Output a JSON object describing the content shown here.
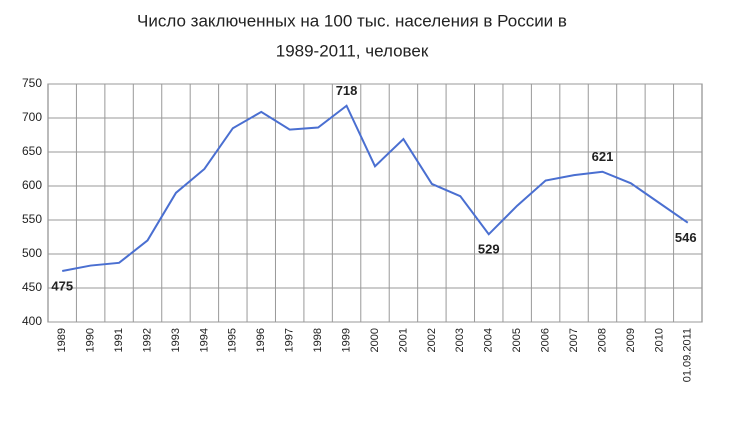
{
  "chart_data": {
    "type": "line",
    "title": [
      "Число заключенных на 100 тыс. населения в России в",
      "1989-2011, человек"
    ],
    "categories": [
      "1989",
      "1990",
      "1991",
      "1992",
      "1993",
      "1994",
      "1995",
      "1996",
      "1997",
      "1998",
      "1999",
      "2000",
      "2001",
      "2002",
      "2003",
      "2004",
      "2005",
      "2006",
      "2007",
      "2008",
      "2009",
      "2010",
      "01.09.2011"
    ],
    "values": [
      475,
      483,
      487,
      520,
      590,
      625,
      685,
      709,
      683,
      686,
      718,
      629,
      669,
      603,
      585,
      529,
      571,
      608,
      616,
      621,
      604,
      575,
      546
    ],
    "labeled_points": [
      0,
      10,
      15,
      19,
      22
    ],
    "color": "#4a6fd1",
    "ylim": [
      400,
      750
    ],
    "yticks": [
      400,
      450,
      500,
      550,
      600,
      650,
      700,
      750
    ],
    "grid": true
  }
}
